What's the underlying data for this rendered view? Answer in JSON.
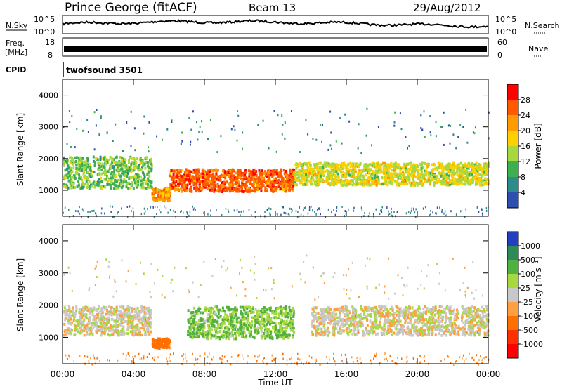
{
  "header": {
    "station": "Prince George (fitACF)",
    "beam": "Beam 13",
    "date": "29/Aug/2012"
  },
  "strips": {
    "nsky_label": "N.Sky",
    "nsky_ticks": [
      "10^5",
      "10^0"
    ],
    "nsearch_label": "N.Search",
    "freq_label_1": "Freq.",
    "freq_label_2": "[MHz]",
    "freq_ticks": [
      "18",
      "8"
    ],
    "nave_label": "Nave",
    "nave_ticks": [
      "60",
      "0"
    ],
    "cpid_label": "CPID",
    "cpid_value": "twofsound 3501"
  },
  "panels": {
    "ylabel": "Slant Range [km]",
    "yticks": [
      "4000",
      "3000",
      "2000",
      "1000"
    ],
    "xlabel": "Time UT",
    "xticks": [
      "00:00",
      "04:00",
      "08:00",
      "12:00",
      "16:00",
      "20:00",
      "00:00"
    ]
  },
  "colorbars": {
    "power": {
      "label": "Power [dB]",
      "ticks": [
        "28",
        "24",
        "20",
        "16",
        "12",
        "8",
        "4"
      ],
      "colors": [
        "#ff0000",
        "#ff5a00",
        "#ff9a00",
        "#ffd000",
        "#a8d840",
        "#3cb050",
        "#2e8b8b",
        "#2c4fb0",
        "#0000ff"
      ]
    },
    "velocity": {
      "label": "Velocity [m s⁻¹]",
      "ticks": [
        "1000",
        "500",
        "100",
        "25",
        "-25",
        "-100",
        "-500",
        "-1000"
      ],
      "colors": [
        "#2040c0",
        "#2e8b57",
        "#50b040",
        "#a8d840",
        "#c8c8c8",
        "#ffa040",
        "#ff7000",
        "#ff3000",
        "#ff0000"
      ]
    }
  },
  "chart_data": [
    {
      "type": "heatmap",
      "title": "Power",
      "xlabel": "Time UT",
      "ylabel": "Slant Range [km]",
      "xlim": [
        "00:00",
        "24:00"
      ],
      "ylim": [
        180,
        4500
      ],
      "colorbar": {
        "label": "Power [dB]",
        "range": [
          0,
          32
        ]
      },
      "regions": [
        {
          "t_start": 0,
          "t_end": 5,
          "range_min": 1100,
          "range_max": 2100,
          "level_db": 14
        },
        {
          "t_start": 5,
          "t_end": 6,
          "range_min": 700,
          "range_max": 1100,
          "level_db": 24
        },
        {
          "t_start": 6,
          "t_end": 13,
          "range_min": 1000,
          "range_max": 1700,
          "level_db": 28
        },
        {
          "t_start": 13,
          "t_end": 24,
          "range_min": 1200,
          "range_max": 1900,
          "level_db": 18
        }
      ]
    },
    {
      "type": "heatmap",
      "title": "Velocity",
      "xlabel": "Time UT",
      "ylabel": "Slant Range [km]",
      "xlim": [
        "00:00",
        "24:00"
      ],
      "ylim": [
        180,
        4500
      ],
      "colorbar": {
        "label": "Velocity [m s-1]",
        "range": [
          -1000,
          1000
        ]
      },
      "regions": [
        {
          "t_start": 0,
          "t_end": 5,
          "range_min": 1100,
          "range_max": 2000,
          "velocity": 0
        },
        {
          "t_start": 5,
          "t_end": 6,
          "range_min": 700,
          "range_max": 1000,
          "velocity": -200
        },
        {
          "t_start": 7,
          "t_end": 13,
          "range_min": 1000,
          "range_max": 2000,
          "velocity": 100
        },
        {
          "t_start": 14,
          "t_end": 24,
          "range_min": 1100,
          "range_max": 2000,
          "velocity": 0
        }
      ]
    }
  ]
}
